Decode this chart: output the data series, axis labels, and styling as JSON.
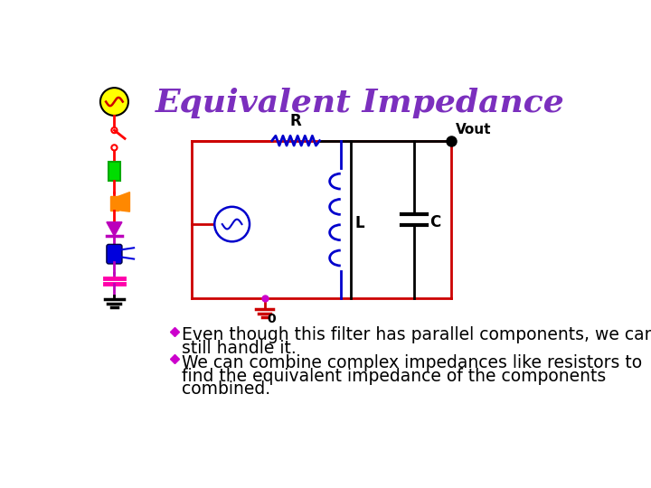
{
  "title": "Equivalent Impedance",
  "title_color": "#7B2FBE",
  "title_fontsize": 26,
  "background_color": "#FFFFFF",
  "bullet_color": "#CC00CC",
  "bullet1_line1": "Even though this filter has parallel components, we can",
  "bullet1_line2": "still handle it.",
  "bullet2_line1": "We can combine complex impedances like resistors to",
  "bullet2_line2": "find the equivalent impedance of the components",
  "bullet2_line3": "combined.",
  "text_color": "#000000",
  "text_fontsize": 13.5,
  "circuit": {
    "box_color": "#CC0000",
    "resistor_color": "#0000CC",
    "inductor_color": "#0000CC",
    "capacitor_color": "#000000",
    "source_color": "#0000CC",
    "label_color": "#000000",
    "mid_wire_color": "#000000"
  },
  "sidebar": {
    "sx": 47,
    "ac_fill": "#FFFF00",
    "ac_stroke": "#000000",
    "wire_color": "#FF0000",
    "switch_color": "#FF0000",
    "battery_fill": "#00DD00",
    "battery_stroke": "#00AA00",
    "speaker_color": "#FF8800",
    "diode_color": "#BB00BB",
    "led_fill": "#0000DD",
    "cap_color": "#FF00AA",
    "ground_color": "#000000",
    "purple_wire": "#BB00BB"
  }
}
